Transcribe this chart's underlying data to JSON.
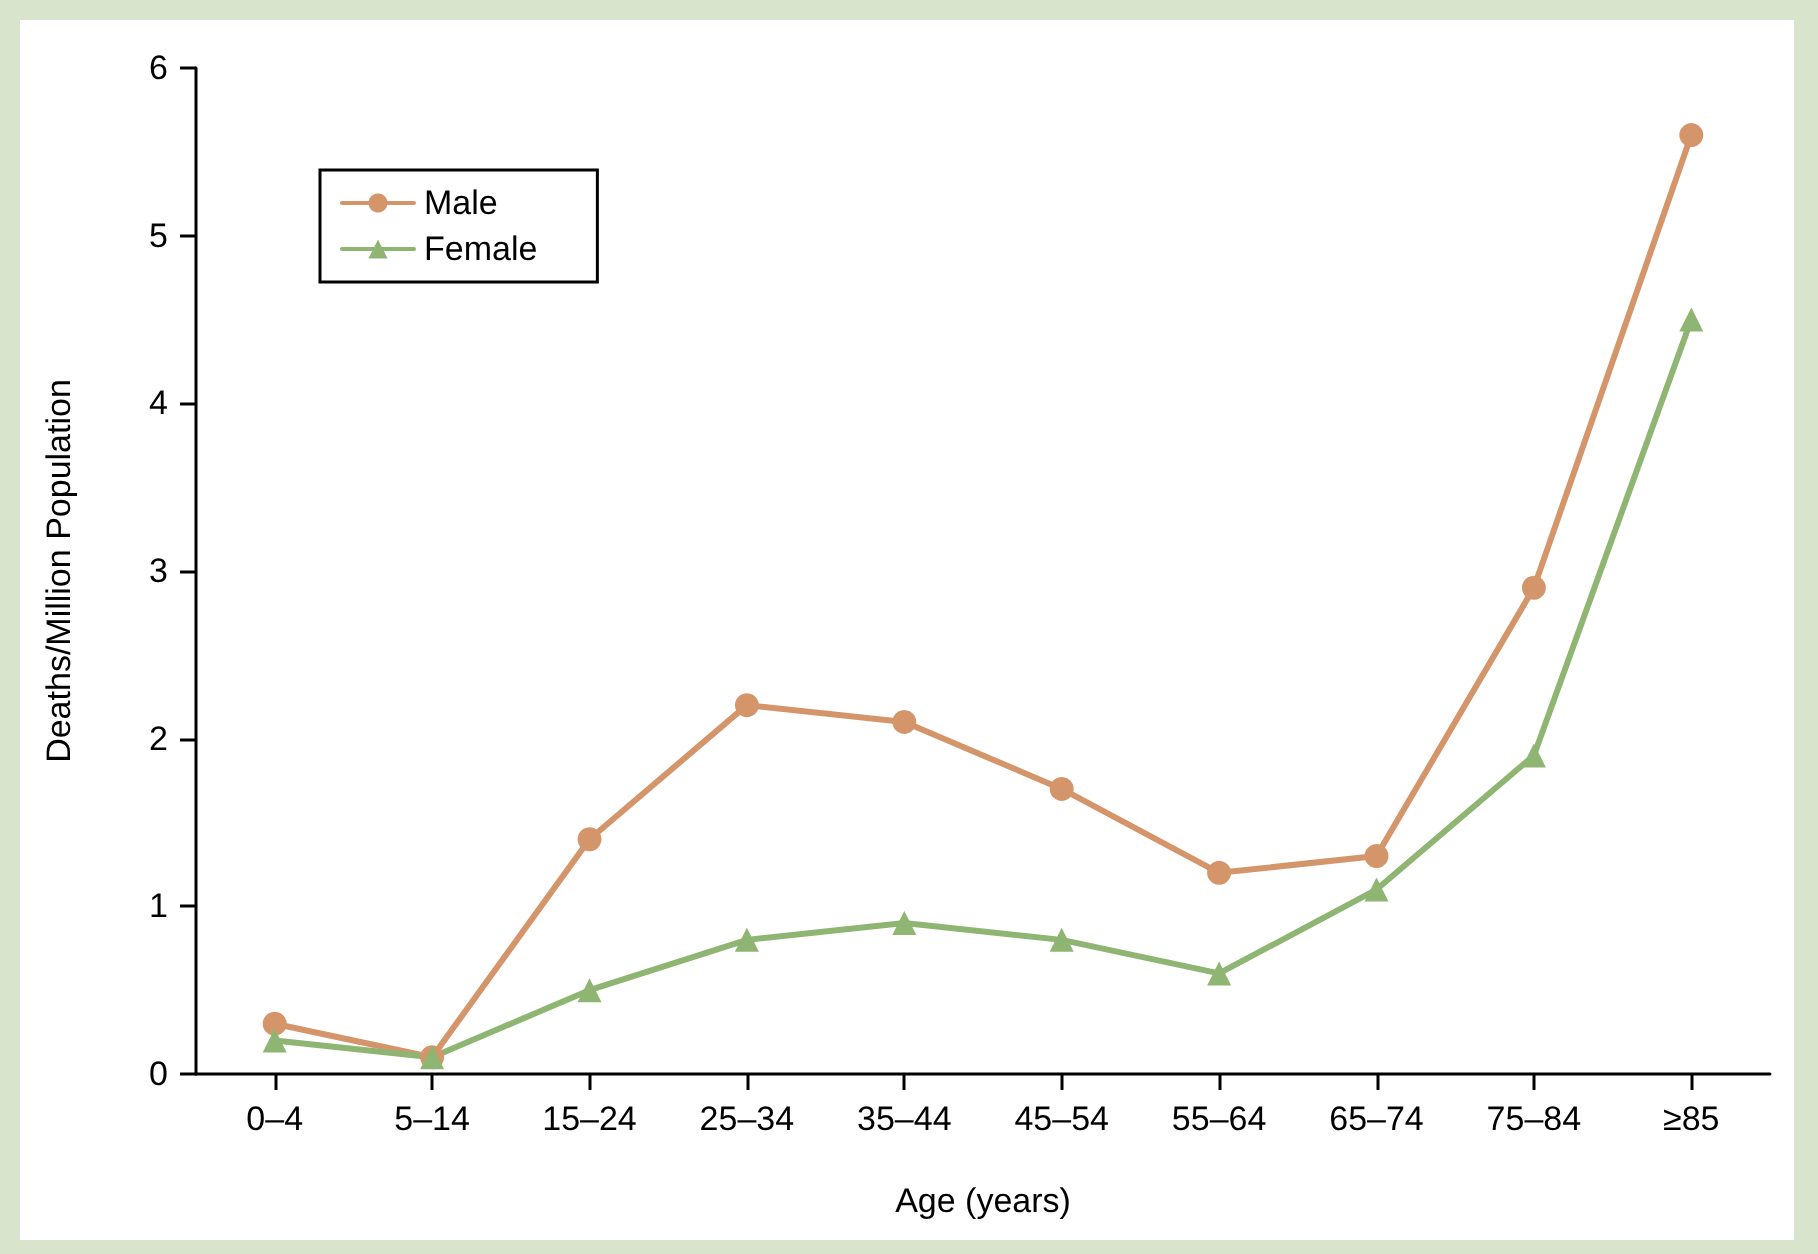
{
  "chart_data": {
    "type": "line",
    "xlabel": "Age (years)",
    "ylabel": "Deaths/Million Population",
    "categories": [
      "0–4",
      "5–14",
      "15–24",
      "25–34",
      "35–44",
      "45–54",
      "55–64",
      "65–74",
      "75–84",
      "≥85"
    ],
    "series": [
      {
        "name": "Male",
        "color": "#d4956a",
        "marker": "circle",
        "values": [
          0.3,
          0.1,
          1.4,
          2.2,
          2.1,
          1.7,
          1.2,
          1.3,
          2.9,
          5.6
        ]
      },
      {
        "name": "Female",
        "color": "#8fb573",
        "marker": "triangle",
        "values": [
          0.2,
          0.1,
          0.5,
          0.8,
          0.9,
          0.8,
          0.6,
          1.1,
          1.9,
          4.5
        ]
      }
    ],
    "ylim": [
      0,
      6
    ],
    "yticks": [
      0,
      1,
      2,
      3,
      4,
      5,
      6
    ],
    "grid": false,
    "legend": "top left",
    "line_style": "solid"
  }
}
